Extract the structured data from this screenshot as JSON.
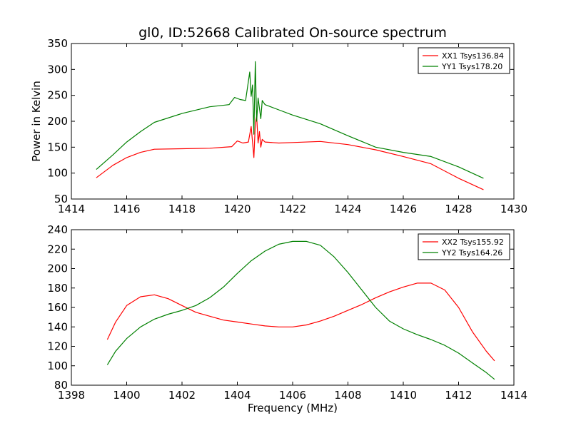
{
  "title": "gl0, ID:52668 Calibrated On-source spectrum",
  "colors": {
    "red": "#ff0000",
    "green": "#008000"
  },
  "chart_data": [
    {
      "type": "line",
      "ylabel": "Power in Kelvin",
      "xlabel": "",
      "xlim": [
        1414,
        1430
      ],
      "ylim": [
        50,
        350
      ],
      "xticks": [
        "1414",
        "1416",
        "1418",
        "1420",
        "1422",
        "1424",
        "1426",
        "1428",
        "1430"
      ],
      "yticks": [
        "50",
        "100",
        "150",
        "200",
        "250",
        "300",
        "350"
      ],
      "legend_position": "top-right",
      "series": [
        {
          "name": "XX1 Tsys136.84",
          "color": "#ff0000",
          "x": [
            1414.9,
            1415.5,
            1416,
            1416.5,
            1417,
            1418,
            1419,
            1419.8,
            1420.0,
            1420.2,
            1420.4,
            1420.5,
            1420.6,
            1420.65,
            1420.7,
            1420.75,
            1420.8,
            1420.85,
            1420.9,
            1421.0,
            1421.5,
            1422,
            1423,
            1424,
            1425,
            1426,
            1427,
            1428,
            1428.9
          ],
          "y": [
            91,
            115,
            130,
            140,
            146,
            147,
            148,
            151,
            162,
            158,
            160,
            190,
            130,
            195,
            210,
            158,
            180,
            150,
            165,
            160,
            158,
            159,
            161,
            155,
            145,
            132,
            118,
            90,
            68
          ]
        },
        {
          "name": "YY1 Tsys178.20",
          "color": "#008000",
          "x": [
            1414.9,
            1415.5,
            1416,
            1416.5,
            1417,
            1418,
            1419,
            1419.7,
            1419.9,
            1420.1,
            1420.3,
            1420.45,
            1420.5,
            1420.55,
            1420.6,
            1420.65,
            1420.7,
            1420.75,
            1420.8,
            1420.85,
            1420.9,
            1421.0,
            1421.5,
            1422,
            1423,
            1424,
            1425,
            1426,
            1427,
            1428,
            1428.9
          ],
          "y": [
            107,
            135,
            160,
            180,
            198,
            215,
            228,
            232,
            246,
            242,
            240,
            295,
            248,
            270,
            175,
            315,
            200,
            245,
            225,
            205,
            240,
            232,
            222,
            212,
            195,
            172,
            150,
            140,
            132,
            112,
            90
          ]
        }
      ]
    },
    {
      "type": "line",
      "ylabel": "",
      "xlabel": "Frequency (MHz)",
      "xlim": [
        1398,
        1414
      ],
      "ylim": [
        80,
        240
      ],
      "xticks": [
        "1398",
        "1400",
        "1402",
        "1404",
        "1406",
        "1408",
        "1410",
        "1412",
        "1414"
      ],
      "yticks": [
        "80",
        "100",
        "120",
        "140",
        "160",
        "180",
        "200",
        "220",
        "240"
      ],
      "legend_position": "top-right",
      "series": [
        {
          "name": "XX2 Tsys155.92",
          "color": "#ff0000",
          "x": [
            1399.3,
            1399.6,
            1400,
            1400.5,
            1401,
            1401.5,
            1402,
            1402.5,
            1403,
            1403.5,
            1404,
            1404.5,
            1405,
            1405.5,
            1406,
            1406.5,
            1407,
            1407.5,
            1408,
            1408.5,
            1409,
            1409.5,
            1410,
            1410.5,
            1411,
            1411.5,
            1412,
            1412.5,
            1413,
            1413.3
          ],
          "y": [
            127,
            145,
            162,
            171,
            173,
            169,
            162,
            155,
            151,
            147,
            145,
            143,
            141,
            140,
            140,
            142,
            146,
            151,
            157,
            163,
            170,
            176,
            181,
            185,
            185,
            178,
            160,
            135,
            115,
            105
          ]
        },
        {
          "name": "YY2 Tsys164.26",
          "color": "#008000",
          "x": [
            1399.3,
            1399.6,
            1400,
            1400.5,
            1401,
            1401.5,
            1402,
            1402.5,
            1403,
            1403.5,
            1404,
            1404.5,
            1405,
            1405.5,
            1406,
            1406.5,
            1407,
            1407.5,
            1408,
            1408.5,
            1409,
            1409.5,
            1410,
            1410.5,
            1411,
            1411.5,
            1412,
            1412.5,
            1413,
            1413.3
          ],
          "y": [
            101,
            115,
            128,
            140,
            148,
            153,
            157,
            162,
            170,
            181,
            195,
            208,
            218,
            225,
            228,
            228,
            224,
            212,
            196,
            178,
            160,
            146,
            138,
            132,
            127,
            121,
            113,
            103,
            93,
            86
          ]
        }
      ]
    }
  ]
}
